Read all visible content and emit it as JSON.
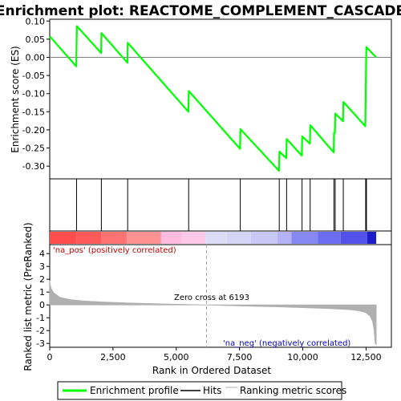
{
  "chart_data": {
    "title": "Enrichment plot: REACTOME_COMPLEMENT_CASCADE",
    "type": "line",
    "x_label": "Rank in Ordered Dataset",
    "x_range": [
      0,
      13500
    ],
    "x_ticks": [
      0,
      2500,
      5000,
      7500,
      10000,
      12500
    ],
    "x_tick_labels": [
      "0",
      "2,500",
      "5,000",
      "7,500",
      "10,000",
      "12,500"
    ],
    "enrichment_panel": {
      "ylabel": "Enrichment score (ES)",
      "ylim": [
        -0.335,
        0.105
      ],
      "yticks": [
        0.1,
        0.05,
        0.0,
        -0.05,
        -0.1,
        -0.15,
        -0.2,
        -0.25,
        -0.3
      ],
      "ytick_labels": [
        "0.10",
        "0.05",
        "0.00",
        "-0.05",
        "-0.10",
        "-0.15",
        "-0.20",
        "-0.25",
        "-0.30"
      ],
      "zero_line": true,
      "series": {
        "name": "Enrichment profile",
        "color": "#00ff00",
        "points": [
          [
            0,
            0.052
          ],
          [
            30,
            0.056
          ],
          [
            1050,
            -0.025
          ],
          [
            1060,
            0.032
          ],
          [
            1075,
            0.086
          ],
          [
            2030,
            0.012
          ],
          [
            2045,
            0.067
          ],
          [
            3070,
            -0.015
          ],
          [
            3085,
            0.04
          ],
          [
            5480,
            -0.15
          ],
          [
            5495,
            -0.093
          ],
          [
            7520,
            -0.252
          ],
          [
            7535,
            -0.198
          ],
          [
            9060,
            -0.313
          ],
          [
            9075,
            -0.26
          ],
          [
            9350,
            -0.278
          ],
          [
            9365,
            -0.225
          ],
          [
            9960,
            -0.271
          ],
          [
            9975,
            -0.218
          ],
          [
            10280,
            -0.238
          ],
          [
            10295,
            -0.187
          ],
          [
            11220,
            -0.262
          ],
          [
            11235,
            -0.208
          ],
          [
            11270,
            -0.208
          ],
          [
            11285,
            -0.155
          ],
          [
            11590,
            -0.176
          ],
          [
            11605,
            -0.123
          ],
          [
            12470,
            -0.19
          ],
          [
            12480,
            -0.138
          ],
          [
            12490,
            -0.082
          ],
          [
            12500,
            -0.028
          ],
          [
            12512,
            0.028
          ],
          [
            12900,
            0.0
          ]
        ]
      }
    },
    "hits": {
      "name": "Hits",
      "color": "#000000",
      "positions": [
        1060,
        2040,
        3080,
        5490,
        7530,
        9070,
        9360,
        9970,
        10290,
        11230,
        11280,
        11600,
        12485,
        12495,
        12505,
        12515
      ]
    },
    "ranking_bar": {
      "segments": [
        [
          0,
          1050,
          "#ff4d4d"
        ],
        [
          1050,
          2050,
          "#ff5a5a"
        ],
        [
          2050,
          3050,
          "#ff7373"
        ],
        [
          3050,
          4400,
          "#ff9191"
        ],
        [
          4400,
          5200,
          "#ffbbe0"
        ],
        [
          5200,
          6150,
          "#ffc7e8"
        ],
        [
          6150,
          7000,
          "#dcdcf6"
        ],
        [
          7000,
          7950,
          "#d4d4f6"
        ],
        [
          7950,
          9000,
          "#c8c8f6"
        ],
        [
          9000,
          9550,
          "#b3b3f6"
        ],
        [
          9550,
          10600,
          "#8888f3"
        ],
        [
          10600,
          11500,
          "#6c6cf0"
        ],
        [
          11500,
          12550,
          "#5252ea"
        ],
        [
          12550,
          12900,
          "#1c1cc8"
        ]
      ]
    },
    "ranked_metric_panel": {
      "ylabel": "Ranked list metric (PreRanked)",
      "ylim": [
        -3.3,
        4.7
      ],
      "yticks": [
        4,
        3,
        2,
        1,
        0,
        -1,
        -2,
        -3
      ],
      "ytick_labels": [
        "4",
        "3",
        "2",
        "1",
        "0",
        "-1",
        "-2",
        "-3"
      ],
      "curve": {
        "name": "Ranking metric scores",
        "color": "#b0b0b0",
        "points": [
          [
            0,
            1.9
          ],
          [
            40,
            1.35
          ],
          [
            150,
            0.95
          ],
          [
            400,
            0.6
          ],
          [
            800,
            0.42
          ],
          [
            1300,
            0.32
          ],
          [
            2000,
            0.24
          ],
          [
            3000,
            0.16
          ],
          [
            4400,
            0.08
          ],
          [
            5400,
            0.04
          ],
          [
            6193,
            0.0
          ],
          [
            7000,
            -0.05
          ],
          [
            8000,
            -0.1
          ],
          [
            9000,
            -0.15
          ],
          [
            10000,
            -0.21
          ],
          [
            11000,
            -0.28
          ],
          [
            11800,
            -0.36
          ],
          [
            12200,
            -0.45
          ],
          [
            12500,
            -0.6
          ],
          [
            12650,
            -0.85
          ],
          [
            12760,
            -1.3
          ],
          [
            12820,
            -2.0
          ],
          [
            12860,
            -3.0
          ],
          [
            12900,
            -3.1
          ]
        ]
      },
      "zero_cross_rank": 6193,
      "zero_cross_label": "Zero cross at 6193",
      "pos_label": "'na_pos' (positively correlated)",
      "neg_label": "'na_neg' (negatively correlated)",
      "pos_color": "#cc0000",
      "neg_color": "#0000cc"
    },
    "legend": [
      {
        "label": "Enrichment profile",
        "color": "#00ff00"
      },
      {
        "label": "Hits",
        "color": "#000000"
      },
      {
        "label": "Ranking metric scores",
        "color": "#b0b0b0"
      }
    ]
  }
}
